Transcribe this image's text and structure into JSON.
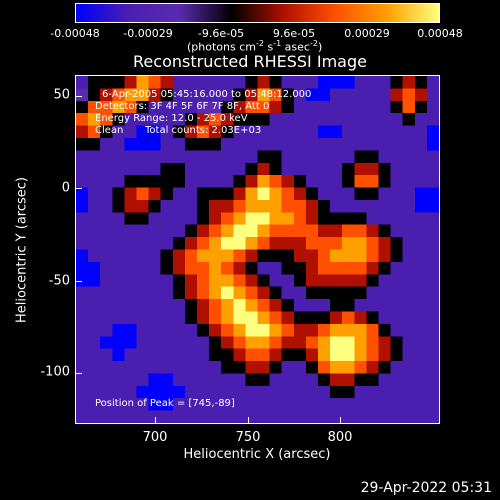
{
  "colorbar": {
    "ticks": [
      "-0.00048",
      "-0.00029",
      "-9.6e-05",
      "9.6e-05",
      "0.00029",
      "0.00048"
    ],
    "unit_text": "(photons cm",
    "unit_sup1": "-2",
    "unit_mid": " s",
    "unit_sup2": "-1",
    "unit_end": " asec",
    "unit_sup3": "-2",
    "unit_close": ")"
  },
  "info": {
    "time_range": "6-Apr-2005 05:45:16.000 to 05:48:12.000",
    "detectors": "Detectors: 3F 4F 5F 6F 7F 8F, Att 0",
    "energy": "Energy Range: 12.0 - 25.0 keV",
    "method": "Clean",
    "counts": "Total counts: 2.03E+03",
    "peak": "Position of Peak = [745,-89]"
  },
  "timestamp": "29-Apr-2022 05:31",
  "chart_data": {
    "type": "heatmap",
    "title": "Reconstructed RHESSI Image",
    "xlabel": "Heliocentric X (arcsec)",
    "ylabel": "Heliocentric Y (arcsec)",
    "xlim": [
      658,
      847
    ],
    "ylim": [
      -128,
      63
    ],
    "xticks": [
      700,
      750,
      800
    ],
    "yticks": [
      50,
      0,
      -50,
      -100
    ],
    "colorbar_range": [
      -0.00048,
      0.00048
    ],
    "colormap": [
      "#0000ff",
      "#4a1fb0",
      "#5a2ab0",
      "#000000",
      "#b01000",
      "#ff5000",
      "#ffa000",
      "#ffff80"
    ],
    "grid": [
      [
        1,
        3,
        3,
        3,
        4,
        6,
        5,
        4,
        1,
        1,
        1,
        1,
        1,
        1,
        3,
        4,
        3,
        1,
        1,
        1,
        0,
        0,
        0,
        1,
        1,
        1,
        3,
        4,
        3,
        1
      ],
      [
        2,
        3,
        4,
        5,
        6,
        6,
        4,
        3,
        1,
        1,
        1,
        1,
        1,
        3,
        4,
        6,
        5,
        3,
        1,
        0,
        0,
        1,
        1,
        1,
        1,
        1,
        4,
        5,
        4,
        1
      ],
      [
        3,
        5,
        5,
        6,
        5,
        3,
        1,
        1,
        1,
        1,
        2,
        2,
        3,
        4,
        5,
        5,
        4,
        3,
        1,
        1,
        1,
        1,
        1,
        1,
        1,
        1,
        3,
        5,
        3,
        1
      ],
      [
        5,
        6,
        5,
        3,
        1,
        1,
        1,
        1,
        1,
        3,
        4,
        5,
        4,
        3,
        3,
        3,
        1,
        1,
        1,
        1,
        1,
        1,
        1,
        1,
        1,
        1,
        1,
        3,
        1,
        1
      ],
      [
        4,
        5,
        3,
        1,
        1,
        0,
        0,
        1,
        3,
        4,
        5,
        4,
        3,
        1,
        1,
        1,
        1,
        1,
        1,
        1,
        0,
        0,
        1,
        1,
        1,
        1,
        1,
        1,
        1,
        0
      ],
      [
        3,
        3,
        1,
        1,
        0,
        0,
        0,
        1,
        1,
        3,
        3,
        3,
        1,
        1,
        1,
        1,
        1,
        1,
        1,
        1,
        1,
        1,
        1,
        1,
        1,
        1,
        1,
        1,
        1,
        0
      ],
      [
        1,
        1,
        1,
        1,
        1,
        1,
        1,
        1,
        1,
        1,
        1,
        1,
        1,
        1,
        1,
        3,
        3,
        1,
        1,
        1,
        1,
        1,
        1,
        3,
        3,
        1,
        1,
        1,
        1,
        1
      ],
      [
        1,
        1,
        1,
        1,
        1,
        1,
        1,
        3,
        3,
        1,
        1,
        1,
        1,
        1,
        3,
        4,
        3,
        1,
        1,
        1,
        1,
        1,
        3,
        4,
        4,
        3,
        1,
        1,
        1,
        1
      ],
      [
        1,
        1,
        1,
        1,
        3,
        3,
        3,
        3,
        3,
        1,
        1,
        1,
        1,
        3,
        4,
        6,
        5,
        4,
        3,
        1,
        1,
        1,
        3,
        5,
        5,
        3,
        1,
        1,
        1,
        1
      ],
      [
        0,
        1,
        1,
        3,
        4,
        5,
        4,
        3,
        1,
        1,
        3,
        3,
        3,
        4,
        6,
        7,
        6,
        5,
        4,
        3,
        1,
        1,
        1,
        3,
        3,
        1,
        1,
        1,
        0,
        0
      ],
      [
        0,
        1,
        1,
        3,
        4,
        4,
        3,
        1,
        1,
        1,
        3,
        4,
        4,
        5,
        6,
        6,
        6,
        5,
        5,
        4,
        3,
        1,
        1,
        1,
        1,
        1,
        1,
        1,
        0,
        0
      ],
      [
        1,
        1,
        1,
        1,
        3,
        3,
        1,
        1,
        1,
        1,
        3,
        4,
        5,
        6,
        7,
        7,
        6,
        6,
        5,
        4,
        3,
        3,
        3,
        3,
        1,
        1,
        1,
        1,
        1,
        1
      ],
      [
        1,
        1,
        1,
        1,
        1,
        1,
        1,
        1,
        1,
        3,
        4,
        5,
        6,
        7,
        7,
        6,
        5,
        5,
        5,
        5,
        4,
        4,
        5,
        5,
        4,
        3,
        1,
        1,
        1,
        1
      ],
      [
        1,
        1,
        1,
        1,
        1,
        1,
        1,
        1,
        3,
        4,
        5,
        6,
        7,
        7,
        6,
        5,
        4,
        4,
        4,
        5,
        5,
        5,
        6,
        6,
        5,
        4,
        3,
        1,
        1,
        1
      ],
      [
        0,
        1,
        1,
        1,
        1,
        1,
        1,
        3,
        4,
        5,
        6,
        6,
        6,
        5,
        4,
        3,
        3,
        3,
        4,
        4,
        5,
        6,
        6,
        6,
        5,
        4,
        3,
        1,
        1,
        1
      ],
      [
        0,
        0,
        1,
        1,
        1,
        1,
        1,
        3,
        4,
        5,
        5,
        6,
        5,
        4,
        3,
        1,
        1,
        3,
        3,
        4,
        5,
        5,
        5,
        5,
        4,
        3,
        1,
        1,
        1,
        1
      ],
      [
        0,
        0,
        1,
        1,
        1,
        1,
        1,
        1,
        3,
        4,
        5,
        6,
        6,
        5,
        4,
        3,
        1,
        1,
        3,
        4,
        4,
        4,
        4,
        4,
        3,
        1,
        1,
        1,
        1,
        1
      ],
      [
        1,
        1,
        1,
        1,
        1,
        1,
        1,
        1,
        3,
        4,
        5,
        6,
        7,
        6,
        5,
        4,
        3,
        1,
        1,
        3,
        3,
        3,
        3,
        3,
        1,
        1,
        1,
        1,
        1,
        1
      ],
      [
        1,
        1,
        1,
        1,
        1,
        1,
        1,
        1,
        1,
        3,
        4,
        5,
        6,
        7,
        6,
        5,
        4,
        3,
        1,
        1,
        1,
        3,
        3,
        1,
        1,
        1,
        1,
        1,
        1,
        1
      ],
      [
        1,
        1,
        1,
        1,
        1,
        1,
        1,
        1,
        1,
        3,
        4,
        5,
        6,
        7,
        7,
        6,
        5,
        4,
        3,
        3,
        3,
        4,
        5,
        4,
        3,
        1,
        1,
        1,
        1,
        1
      ],
      [
        1,
        1,
        1,
        0,
        0,
        1,
        1,
        1,
        1,
        1,
        3,
        4,
        5,
        6,
        7,
        7,
        6,
        5,
        4,
        4,
        5,
        6,
        6,
        6,
        5,
        3,
        1,
        1,
        1,
        1
      ],
      [
        1,
        1,
        0,
        0,
        0,
        1,
        1,
        1,
        1,
        1,
        1,
        3,
        4,
        5,
        6,
        6,
        5,
        4,
        4,
        5,
        6,
        7,
        7,
        6,
        5,
        4,
        3,
        1,
        1,
        1
      ],
      [
        1,
        1,
        1,
        0,
        1,
        1,
        1,
        1,
        1,
        1,
        1,
        3,
        3,
        4,
        5,
        5,
        4,
        3,
        3,
        4,
        6,
        7,
        7,
        6,
        5,
        4,
        3,
        1,
        1,
        1
      ],
      [
        1,
        1,
        1,
        1,
        1,
        1,
        1,
        1,
        1,
        1,
        1,
        1,
        3,
        3,
        4,
        4,
        3,
        1,
        1,
        3,
        5,
        6,
        6,
        5,
        4,
        3,
        1,
        1,
        1,
        1
      ],
      [
        1,
        1,
        1,
        1,
        1,
        1,
        0,
        0,
        1,
        1,
        1,
        1,
        1,
        1,
        3,
        3,
        1,
        1,
        1,
        1,
        3,
        4,
        4,
        3,
        3,
        1,
        1,
        1,
        1,
        1
      ],
      [
        1,
        1,
        1,
        1,
        1,
        0,
        0,
        0,
        0,
        1,
        1,
        1,
        1,
        1,
        1,
        1,
        1,
        1,
        1,
        1,
        1,
        3,
        3,
        1,
        1,
        1,
        1,
        1,
        1,
        1
      ],
      [
        1,
        1,
        1,
        1,
        1,
        1,
        0,
        0,
        1,
        1,
        1,
        1,
        1,
        1,
        1,
        1,
        1,
        1,
        1,
        1,
        1,
        1,
        1,
        1,
        1,
        1,
        1,
        1,
        1,
        1
      ],
      [
        1,
        1,
        1,
        1,
        1,
        1,
        1,
        1,
        1,
        1,
        1,
        1,
        1,
        1,
        1,
        1,
        1,
        1,
        1,
        1,
        1,
        1,
        1,
        1,
        1,
        1,
        1,
        1,
        1,
        1
      ]
    ]
  }
}
